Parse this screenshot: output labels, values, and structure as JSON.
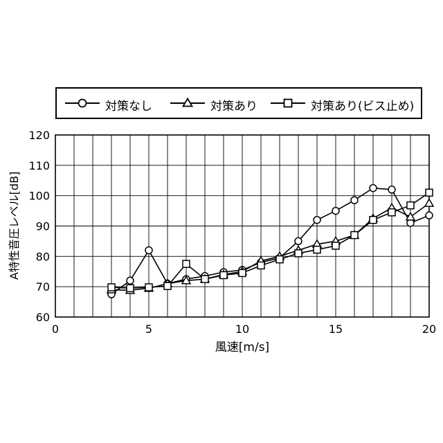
{
  "chart_data": {
    "type": "line",
    "xlabel": "風速[m/s]",
    "ylabel": "A特性音圧レベル[dB]",
    "xlim": [
      0,
      20
    ],
    "ylim": [
      60,
      120
    ],
    "x_ticks": [
      "0",
      "5",
      "10",
      "15",
      "20"
    ],
    "y_ticks": [
      "60",
      "70",
      "80",
      "90",
      "100",
      "110",
      "120"
    ],
    "grid": true,
    "legend_position": "top",
    "series": [
      {
        "name": "対策なし",
        "marker": "circle",
        "x": [
          3,
          4,
          5,
          6,
          7,
          8,
          9,
          10,
          11,
          12,
          13,
          14,
          15,
          16,
          17,
          18,
          19,
          20
        ],
        "y": [
          67.5,
          72,
          82,
          71,
          72.5,
          73.5,
          74.8,
          75.5,
          78,
          79.5,
          85,
          92,
          95,
          98.5,
          102.5,
          102,
          91,
          93.5
        ]
      },
      {
        "name": "対策あり",
        "marker": "triangle",
        "x": [
          3,
          4,
          5,
          6,
          7,
          8,
          9,
          10,
          11,
          12,
          13,
          14,
          15,
          16,
          17,
          18,
          19,
          20
        ],
        "y": [
          69,
          68.8,
          69.5,
          71,
          72,
          72.5,
          74,
          75,
          78.5,
          80,
          82,
          84,
          85,
          87,
          92.5,
          96,
          93,
          97.5
        ]
      },
      {
        "name": "対策あり(ビス止め)",
        "marker": "square",
        "x": [
          3,
          4,
          5,
          6,
          7,
          8,
          9,
          10,
          11,
          12,
          13,
          14,
          15,
          16,
          17,
          18,
          19,
          20
        ],
        "y": [
          69.8,
          69.5,
          69.8,
          70.2,
          77.5,
          72.5,
          73.8,
          74.5,
          77,
          79,
          81,
          82.2,
          83.5,
          87,
          92,
          94.5,
          96.8,
          101
        ]
      }
    ]
  }
}
